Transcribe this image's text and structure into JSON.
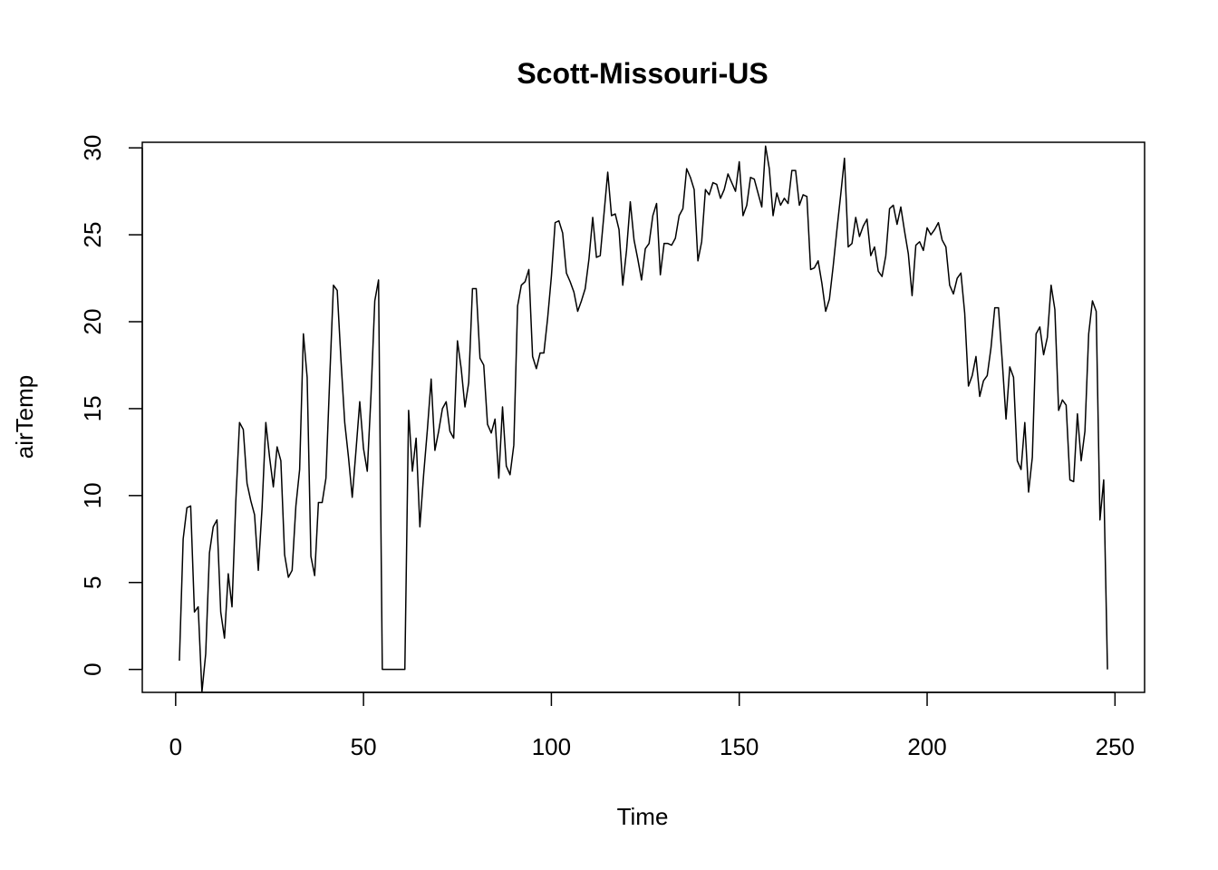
{
  "chart_data": {
    "type": "line",
    "title": "Scott-Missouri-US",
    "xlabel": "Time",
    "ylabel": "airTemp",
    "xlim": [
      -8.88,
      257.88
    ],
    "ylim": [
      -1.32,
      30.32
    ],
    "xticks": [
      0,
      50,
      100,
      150,
      200,
      250
    ],
    "yticks": [
      0,
      5,
      10,
      15,
      20,
      25,
      30
    ],
    "xtick_labels": [
      "0",
      "50",
      "100",
      "150",
      "200",
      "250"
    ],
    "ytick_labels": [
      "0",
      "5",
      "10",
      "15",
      "20",
      "25",
      "30"
    ],
    "grid": false,
    "legend": "none",
    "line_color": "#000000",
    "series": [
      {
        "x_start": 1,
        "values": [
          0.5,
          7.5,
          9.3,
          9.4,
          3.3,
          3.6,
          -1.3,
          0.9,
          6.7,
          8.2,
          8.6,
          3.3,
          1.8,
          5.5,
          3.6,
          9.6,
          14.2,
          13.8,
          10.7,
          9.7,
          8.9,
          5.7,
          9.3,
          14.2,
          12.2,
          10.5,
          12.8,
          12.0,
          6.6,
          5.3,
          5.7,
          9.4,
          11.5,
          19.3,
          16.8,
          6.5,
          5.4,
          9.6,
          9.6,
          11.0,
          16.7,
          22.1,
          21.8,
          17.8,
          14.2,
          12.2,
          9.9,
          12.6,
          15.4,
          12.7,
          11.4,
          15.8,
          21.2,
          22.4,
          0,
          0,
          0,
          0,
          0,
          0,
          0,
          14.9,
          11.4,
          13.3,
          8.2,
          11.2,
          13.8,
          16.7,
          12.6,
          13.7,
          15.0,
          15.4,
          13.7,
          13.3,
          18.9,
          17.3,
          15.1,
          16.5,
          21.9,
          21.9,
          17.9,
          17.5,
          14.1,
          13.6,
          14.4,
          11.0,
          15.1,
          11.7,
          11.2,
          12.9,
          20.9,
          22.1,
          22.3,
          23.0,
          18.0,
          17.3,
          18.2,
          18.2,
          20.2,
          22.6,
          25.7,
          25.8,
          25.1,
          22.8,
          22.3,
          21.7,
          20.6,
          21.2,
          21.9,
          23.6,
          26.0,
          23.7,
          23.8,
          26.2,
          28.6,
          26.1,
          26.2,
          25.3,
          22.1,
          24.1,
          26.9,
          24.7,
          23.6,
          22.4,
          24.2,
          24.5,
          26.1,
          26.8,
          22.7,
          24.5,
          24.5,
          24.4,
          24.8,
          26.1,
          26.5,
          28.8,
          28.3,
          27.6,
          23.5,
          24.6,
          27.6,
          27.3,
          28.0,
          27.9,
          27.1,
          27.6,
          28.5,
          28.0,
          27.5,
          29.2,
          26.1,
          26.7,
          28.3,
          28.2,
          27.4,
          26.6,
          30.1,
          28.8,
          26.1,
          27.4,
          26.7,
          27.1,
          26.8,
          28.7,
          28.7,
          26.7,
          27.3,
          27.2,
          23.0,
          23.1,
          23.5,
          22.2,
          20.6,
          21.3,
          23.2,
          25.3,
          27.3,
          29.4,
          24.3,
          24.5,
          26.0,
          24.9,
          25.5,
          25.9,
          23.8,
          24.3,
          22.9,
          22.6,
          23.8,
          26.5,
          26.7,
          25.6,
          26.6,
          25.2,
          23.9,
          21.5,
          24.4,
          24.6,
          24.1,
          25.4,
          25.0,
          25.3,
          25.7,
          24.7,
          24.3,
          22.1,
          21.6,
          22.5,
          22.8,
          20.5,
          16.3,
          16.9,
          18.0,
          15.7,
          16.6,
          16.9,
          18.5,
          20.8,
          20.8,
          17.7,
          14.4,
          17.4,
          16.8,
          12.0,
          11.5,
          14.2,
          10.2,
          12.2,
          19.3,
          19.7,
          18.1,
          19.1,
          22.1,
          20.7,
          14.9,
          15.5,
          15.2,
          10.9,
          10.8,
          14.7,
          12.0,
          13.7,
          19.3,
          21.2,
          20.6,
          8.6,
          10.9,
          0
        ]
      }
    ]
  }
}
